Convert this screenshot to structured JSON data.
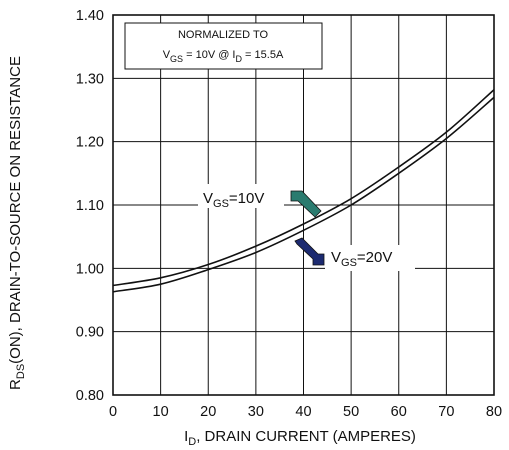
{
  "chart_data": {
    "type": "line",
    "title": "",
    "xlabel": {
      "main": "I",
      "sub": "D",
      "rest": ", DRAIN CURRENT (AMPERES)"
    },
    "ylabel": {
      "main": "R",
      "sub": "DS",
      "rest": "(ON), DRAIN-TO-SOURCE ON RESISTANCE"
    },
    "xlim": [
      0,
      80
    ],
    "ylim": [
      0.8,
      1.4
    ],
    "x_ticks": [
      "0",
      "10",
      "20",
      "30",
      "40",
      "50",
      "60",
      "70",
      "80"
    ],
    "y_ticks": [
      "0.80",
      "0.90",
      "1.00",
      "1.10",
      "1.20",
      "1.30",
      "1.40"
    ],
    "grid": true,
    "note": {
      "line1": "NORMALIZED  TO",
      "line2_parts": [
        "V",
        "GS",
        " = 10V  @  I",
        "D",
        " = 15.5A"
      ]
    },
    "series": [
      {
        "name": "VGS=10V",
        "label": {
          "main": "V",
          "sub": "GS",
          "rest": "=10V"
        },
        "arrow_color": "#2a7b6f",
        "x": [
          0,
          10,
          20,
          30,
          40,
          50,
          60,
          70,
          80
        ],
        "values": [
          0.973,
          0.985,
          1.006,
          1.035,
          1.07,
          1.11,
          1.16,
          1.215,
          1.282
        ]
      },
      {
        "name": "VGS=20V",
        "label": {
          "main": "V",
          "sub": "GS",
          "rest": "=20V"
        },
        "arrow_color": "#1c2a70",
        "x": [
          0,
          10,
          20,
          30,
          40,
          50,
          60,
          70,
          80
        ],
        "values": [
          0.963,
          0.975,
          0.998,
          1.025,
          1.06,
          1.1,
          1.15,
          1.205,
          1.27
        ]
      }
    ]
  }
}
